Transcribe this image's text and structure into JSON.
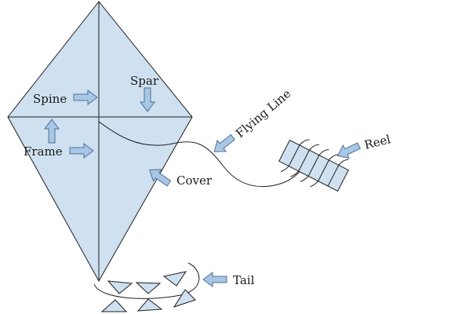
{
  "colors": {
    "kite_fill": "#cfe0f1",
    "stroke": "#1f1f1f",
    "arrow_fill": "#a8c7e6",
    "arrow_stroke": "#4f6f91",
    "background": "#ffffff"
  },
  "labels": {
    "spine": "Spine",
    "spar": "Spar",
    "frame": "Frame",
    "cover": "Cover",
    "flying_line": "Flying Line",
    "reel": "Reel",
    "tail": "Tail"
  }
}
